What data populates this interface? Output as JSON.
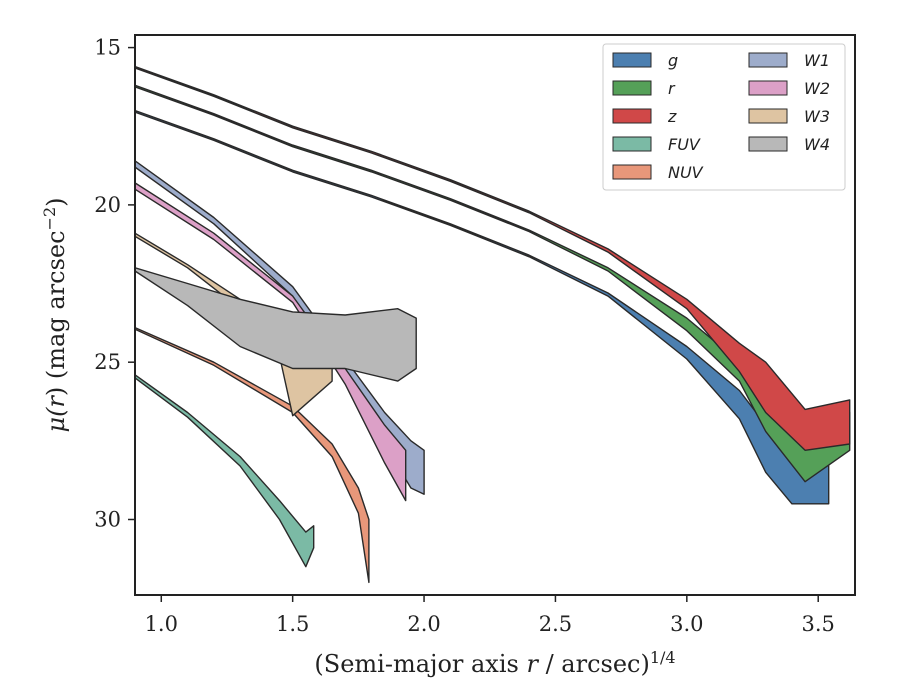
{
  "chart_data": {
    "type": "area",
    "xlabel": "(Semi-major axis r / arcsec)",
    "xlabel_parts": {
      "pre": "(Semi-major axis ",
      "var": "r",
      "post": " / arcsec)",
      "sup": "1/4"
    },
    "ylabel_parts": {
      "pre": "μ(",
      "var": "r",
      "post": ") (mag arcsec",
      "sup": "−2",
      "end": ")"
    },
    "xlim": [
      0.9,
      3.64
    ],
    "ylim": [
      32.4,
      14.6
    ],
    "y_inverted": true,
    "xticks": [
      1.0,
      1.5,
      2.0,
      2.5,
      3.0,
      3.5
    ],
    "xtick_labels": [
      "1.0",
      "1.5",
      "2.0",
      "2.5",
      "3.0",
      "3.5"
    ],
    "yticks": [
      15,
      20,
      25,
      30
    ],
    "ytick_labels": [
      "15",
      "20",
      "25",
      "30"
    ],
    "grid": false,
    "legend_position": "top-right",
    "legend_columns": 2,
    "series": [
      {
        "name": "g",
        "color": "#4c7fb0",
        "upper": [
          [
            0.9,
            17.0
          ],
          [
            1.2,
            17.9
          ],
          [
            1.5,
            18.9
          ],
          [
            1.8,
            19.7
          ],
          [
            2.1,
            20.6
          ],
          [
            2.4,
            21.6
          ],
          [
            2.7,
            22.8
          ],
          [
            3.0,
            24.5
          ],
          [
            3.2,
            25.9
          ],
          [
            3.3,
            27.0
          ],
          [
            3.4,
            27.3
          ],
          [
            3.54,
            27.2
          ]
        ],
        "lower": [
          [
            0.9,
            17.05
          ],
          [
            1.2,
            17.95
          ],
          [
            1.5,
            18.95
          ],
          [
            1.8,
            19.75
          ],
          [
            2.1,
            20.65
          ],
          [
            2.4,
            21.65
          ],
          [
            2.7,
            22.9
          ],
          [
            3.0,
            24.9
          ],
          [
            3.2,
            26.8
          ],
          [
            3.3,
            28.5
          ],
          [
            3.4,
            29.5
          ],
          [
            3.54,
            29.5
          ]
        ]
      },
      {
        "name": "r",
        "color": "#55a058",
        "upper": [
          [
            0.9,
            16.2
          ],
          [
            1.2,
            17.1
          ],
          [
            1.5,
            18.1
          ],
          [
            1.8,
            18.9
          ],
          [
            2.1,
            19.8
          ],
          [
            2.4,
            20.8
          ],
          [
            2.7,
            22.0
          ],
          [
            3.0,
            23.6
          ],
          [
            3.2,
            25.0
          ],
          [
            3.3,
            25.8
          ],
          [
            3.45,
            26.8
          ],
          [
            3.62,
            26.6
          ]
        ],
        "lower": [
          [
            0.9,
            16.25
          ],
          [
            1.2,
            17.15
          ],
          [
            1.5,
            18.15
          ],
          [
            1.8,
            18.95
          ],
          [
            2.1,
            19.85
          ],
          [
            2.4,
            20.85
          ],
          [
            2.7,
            22.1
          ],
          [
            3.0,
            24.0
          ],
          [
            3.2,
            25.6
          ],
          [
            3.3,
            27.2
          ],
          [
            3.45,
            28.8
          ],
          [
            3.62,
            27.8
          ]
        ]
      },
      {
        "name": "z",
        "color": "#d04848",
        "upper": [
          [
            0.9,
            15.6
          ],
          [
            1.2,
            16.5
          ],
          [
            1.5,
            17.5
          ],
          [
            1.8,
            18.3
          ],
          [
            2.1,
            19.2
          ],
          [
            2.4,
            20.2
          ],
          [
            2.7,
            21.4
          ],
          [
            3.0,
            23.0
          ],
          [
            3.2,
            24.4
          ],
          [
            3.3,
            25.0
          ],
          [
            3.45,
            26.5
          ],
          [
            3.62,
            26.2
          ]
        ],
        "lower": [
          [
            0.9,
            15.65
          ],
          [
            1.2,
            16.55
          ],
          [
            1.5,
            17.55
          ],
          [
            1.8,
            18.35
          ],
          [
            2.1,
            19.25
          ],
          [
            2.4,
            20.25
          ],
          [
            2.7,
            21.5
          ],
          [
            3.0,
            23.3
          ],
          [
            3.2,
            25.3
          ],
          [
            3.3,
            26.6
          ],
          [
            3.45,
            27.8
          ],
          [
            3.62,
            27.6
          ]
        ]
      },
      {
        "name": "FUV",
        "color": "#7bbaa5",
        "upper": [
          [
            0.9,
            25.4
          ],
          [
            1.1,
            26.6
          ],
          [
            1.3,
            28.0
          ],
          [
            1.45,
            29.4
          ],
          [
            1.55,
            30.4
          ],
          [
            1.58,
            30.2
          ]
        ],
        "lower": [
          [
            0.9,
            25.5
          ],
          [
            1.1,
            26.75
          ],
          [
            1.3,
            28.3
          ],
          [
            1.45,
            30.0
          ],
          [
            1.55,
            31.5
          ],
          [
            1.58,
            30.9
          ]
        ]
      },
      {
        "name": "NUV",
        "color": "#e8977a",
        "upper": [
          [
            0.9,
            23.9
          ],
          [
            1.2,
            25.0
          ],
          [
            1.5,
            26.4
          ],
          [
            1.65,
            27.6
          ],
          [
            1.75,
            29.0
          ],
          [
            1.79,
            30.0
          ]
        ],
        "lower": [
          [
            0.9,
            23.95
          ],
          [
            1.2,
            25.1
          ],
          [
            1.5,
            26.6
          ],
          [
            1.65,
            28.0
          ],
          [
            1.75,
            29.8
          ],
          [
            1.79,
            32.0
          ]
        ]
      },
      {
        "name": "W1",
        "color": "#9daccb",
        "upper": [
          [
            0.9,
            18.6
          ],
          [
            1.2,
            20.4
          ],
          [
            1.5,
            22.6
          ],
          [
            1.7,
            24.9
          ],
          [
            1.85,
            26.6
          ],
          [
            1.95,
            27.5
          ],
          [
            2.0,
            27.8
          ]
        ],
        "lower": [
          [
            0.9,
            18.8
          ],
          [
            1.2,
            20.6
          ],
          [
            1.5,
            22.9
          ],
          [
            1.7,
            25.4
          ],
          [
            1.85,
            27.6
          ],
          [
            1.95,
            29.0
          ],
          [
            2.0,
            29.2
          ]
        ]
      },
      {
        "name": "W2",
        "color": "#dca0c7",
        "upper": [
          [
            0.9,
            19.3
          ],
          [
            1.2,
            20.9
          ],
          [
            1.5,
            22.9
          ],
          [
            1.7,
            25.2
          ],
          [
            1.85,
            27.0
          ],
          [
            1.93,
            27.8
          ]
        ],
        "lower": [
          [
            0.9,
            19.5
          ],
          [
            1.2,
            21.1
          ],
          [
            1.5,
            23.1
          ],
          [
            1.7,
            25.7
          ],
          [
            1.85,
            28.2
          ],
          [
            1.93,
            29.4
          ]
        ]
      },
      {
        "name": "W3",
        "color": "#dec4a2",
        "upper": [
          [
            0.9,
            20.9
          ],
          [
            1.1,
            21.9
          ],
          [
            1.3,
            23.0
          ],
          [
            1.45,
            23.9
          ],
          [
            1.55,
            24.8
          ],
          [
            1.65,
            24.6
          ]
        ],
        "lower": [
          [
            0.9,
            21.0
          ],
          [
            1.1,
            22.0
          ],
          [
            1.3,
            23.3
          ],
          [
            1.45,
            24.8
          ],
          [
            1.5,
            26.7
          ],
          [
            1.65,
            25.6
          ]
        ]
      },
      {
        "name": "W4",
        "color": "#b8b8b8",
        "upper": [
          [
            0.9,
            22.0
          ],
          [
            1.1,
            22.5
          ],
          [
            1.3,
            23.0
          ],
          [
            1.5,
            23.4
          ],
          [
            1.7,
            23.5
          ],
          [
            1.9,
            23.3
          ],
          [
            1.97,
            23.6
          ]
        ],
        "lower": [
          [
            0.9,
            22.1
          ],
          [
            1.1,
            23.2
          ],
          [
            1.3,
            24.5
          ],
          [
            1.5,
            25.2
          ],
          [
            1.7,
            25.2
          ],
          [
            1.9,
            25.6
          ],
          [
            1.97,
            25.2
          ]
        ]
      }
    ]
  }
}
